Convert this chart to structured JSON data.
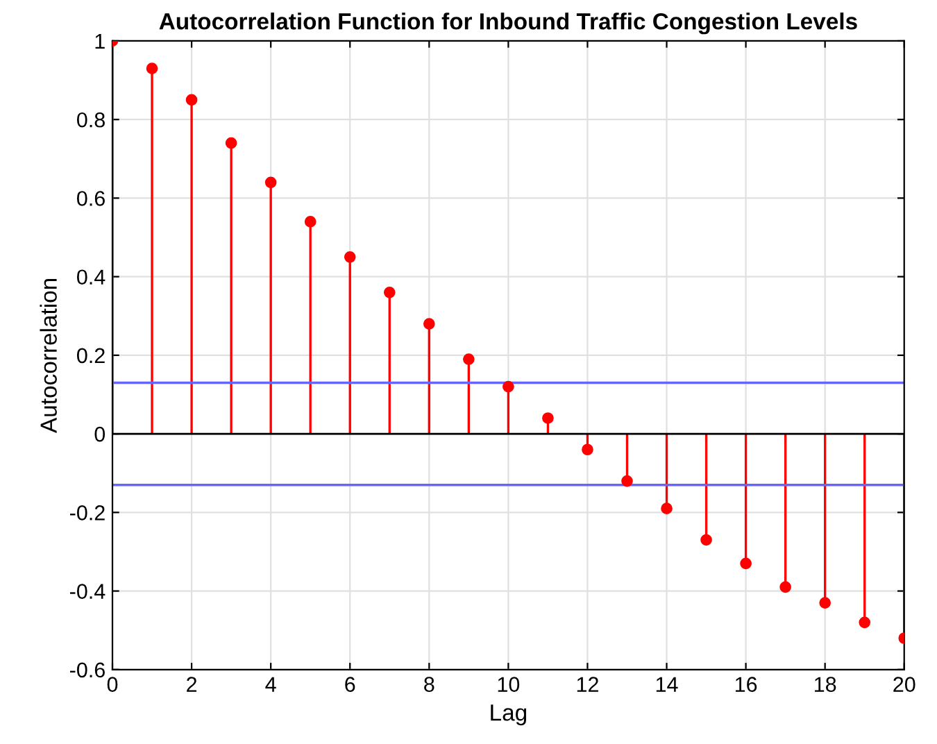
{
  "chart_data": {
    "type": "lollipop",
    "title": "Autocorrelation Function for Inbound Traffic Congestion Levels",
    "xlabel": "Lag",
    "ylabel": "Autocorrelation",
    "x": [
      0,
      1,
      2,
      3,
      4,
      5,
      6,
      7,
      8,
      9,
      10,
      11,
      12,
      13,
      14,
      15,
      16,
      17,
      18,
      19,
      20
    ],
    "series": [
      {
        "color": "#ff0000",
        "values": [
          1,
          0.93,
          0.85,
          0.74,
          0.64,
          0.54,
          0.45,
          0.36,
          0.28,
          0.19,
          0.12,
          0.04,
          -0.04,
          -0.12,
          -0.19,
          -0.27,
          -0.33,
          -0.39,
          -0.43,
          -0.48,
          -0.52
        ]
      }
    ],
    "ref_lines": [
      {
        "axis": "y",
        "value": 0.13,
        "color": "#6666ff"
      },
      {
        "axis": "y",
        "value": -0.13,
        "color": "#6666ff"
      }
    ],
    "xlim": [
      0,
      20
    ],
    "xticks": [
      0,
      2,
      4,
      6,
      8,
      10,
      12,
      14,
      16,
      18,
      20
    ],
    "ylim": [
      -0.6,
      1
    ],
    "yticks": [
      -0.6,
      -0.4,
      -0.2,
      0,
      0.2,
      0.4,
      0.6,
      0.8,
      1
    ],
    "grid": true,
    "marker": "circle"
  }
}
